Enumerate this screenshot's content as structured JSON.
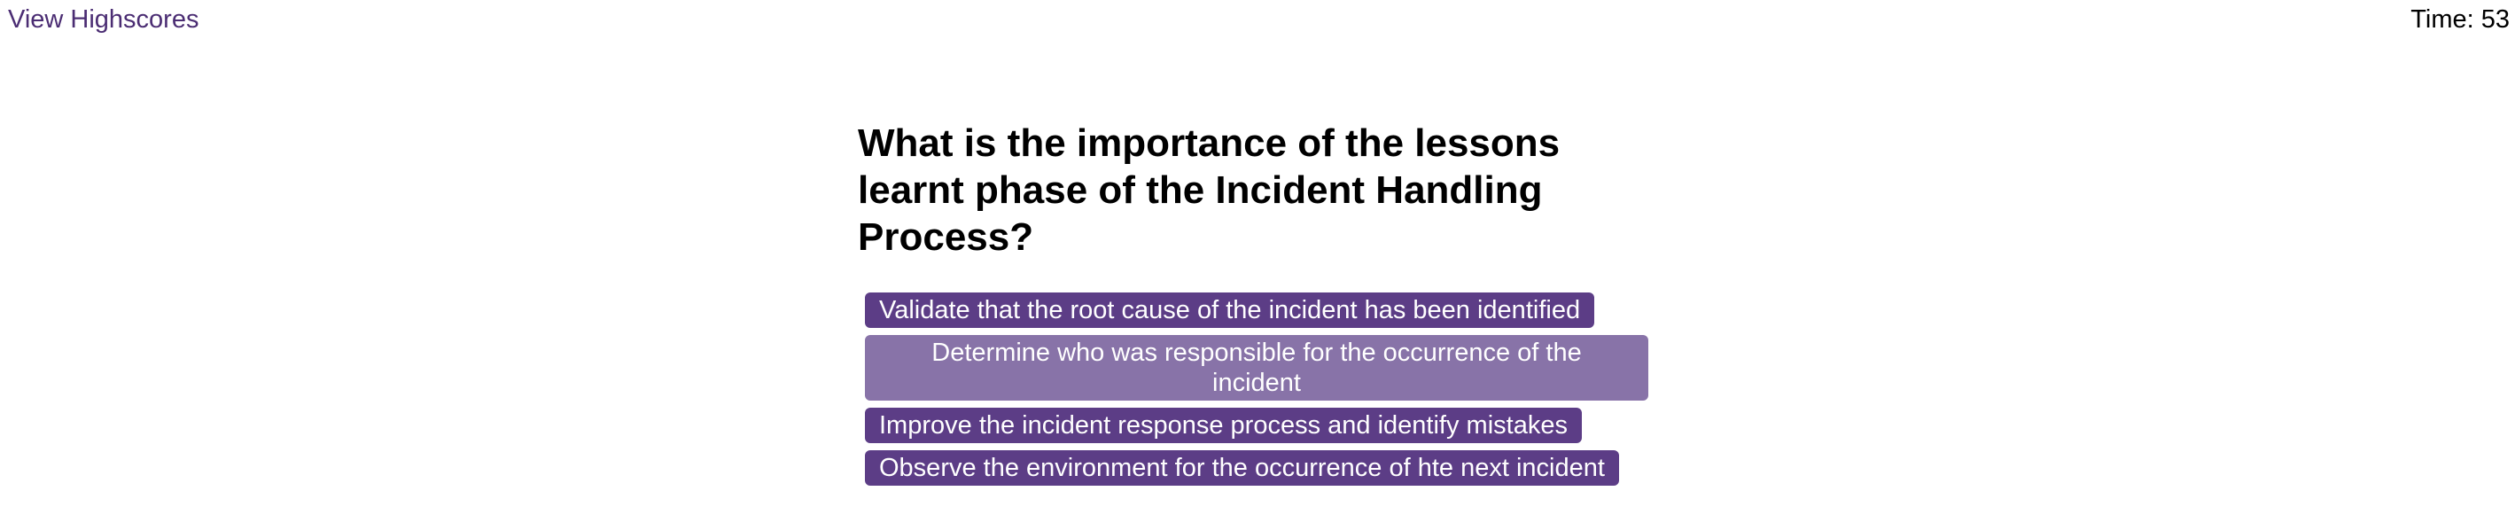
{
  "header": {
    "highscores_link": "View Highscores",
    "timer_text": "Time: 53"
  },
  "quiz": {
    "question": "What is the importance of the lessons learnt phase of the Incident Handling Process?",
    "choices": [
      "Validate that the root cause of the incident has been identified",
      "Determine who was responsible for the occurrence of the incident",
      "Improve the incident response process and identify mistakes",
      "Observe the environment for the occurrence of hte next incident"
    ]
  },
  "colors": {
    "accent": "#5c3d86",
    "accent_hover": "#8873a8",
    "link": "#4b2d73"
  }
}
